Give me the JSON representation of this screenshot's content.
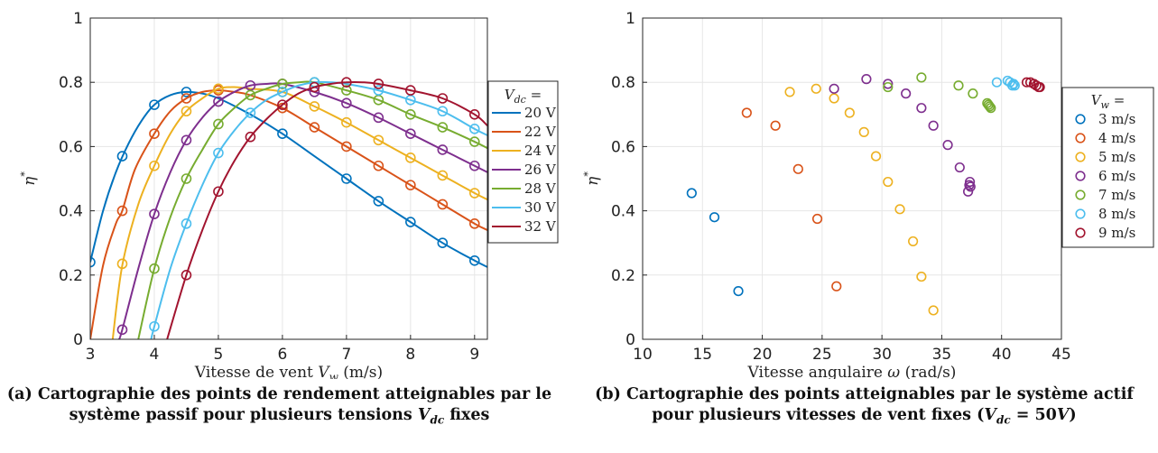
{
  "colors": {
    "palette": [
      "#0072BD",
      "#D95319",
      "#EDB120",
      "#7E2F8E",
      "#77AC30",
      "#4DBEEE",
      "#A2142F"
    ],
    "axes": "#262626",
    "grid": "#e6e6e6"
  },
  "captions": {
    "a": "(a) Cartographie des points de rendement atteignables par le système passif pour plusieurs tensions V_dc fixes",
    "b": "(b) Cartographie des points atteignables par le système actif pour plusieurs vitesses de vent fixes (V_dc = 50V)"
  },
  "chart_data": [
    {
      "type": "line",
      "xlabel": "Vitesse de vent V_w (m/s)",
      "ylabel": "η*",
      "xlim": [
        3,
        9.2
      ],
      "ylim": [
        0,
        1
      ],
      "xticks": [
        3,
        4,
        5,
        6,
        7,
        8,
        9
      ],
      "yticks": [
        0,
        0.2,
        0.4,
        0.6,
        0.8,
        1
      ],
      "ytick_labels": [
        "0",
        "0.2",
        "0.4",
        "0.6",
        "0.8",
        "1"
      ],
      "grid": true,
      "legend_title": "V_dc =",
      "legend_position": "outside-right",
      "series": [
        {
          "name": "20 V",
          "curve": {
            "x": [
              3.0,
              3.2,
              3.4,
              3.6,
              3.8,
              4.0,
              4.25,
              4.5,
              4.75,
              5.0,
              5.5,
              6.0,
              6.5,
              7.0,
              7.5,
              8.0,
              8.5,
              9.0,
              9.2
            ],
            "y": [
              0.24,
              0.4,
              0.52,
              0.61,
              0.68,
              0.73,
              0.76,
              0.77,
              0.765,
              0.75,
              0.7,
              0.64,
              0.57,
              0.5,
              0.43,
              0.365,
              0.3,
              0.245,
              0.225
            ]
          },
          "markers": {
            "x": [
              3.0,
              3.5,
              4.0,
              4.5,
              6.0,
              7.0,
              7.5,
              8.0,
              8.5,
              9.0
            ],
            "y": [
              0.24,
              0.57,
              0.73,
              0.77,
              0.64,
              0.5,
              0.43,
              0.365,
              0.3,
              0.245
            ]
          }
        },
        {
          "name": "22 V",
          "curve": {
            "x": [
              3.0,
              3.2,
              3.4,
              3.5,
              3.7,
              4.0,
              4.25,
              4.5,
              4.75,
              5.0,
              5.25,
              5.5,
              6.0,
              6.5,
              7.0,
              7.5,
              8.0,
              8.5,
              9.0,
              9.2
            ],
            "y": [
              0.0,
              0.23,
              0.36,
              0.4,
              0.53,
              0.64,
              0.71,
              0.75,
              0.77,
              0.775,
              0.77,
              0.76,
              0.72,
              0.66,
              0.6,
              0.54,
              0.48,
              0.42,
              0.36,
              0.34
            ]
          },
          "markers": {
            "x": [
              3.5,
              4.0,
              4.5,
              5.0,
              6.0,
              6.5,
              7.0,
              7.5,
              8.0,
              8.5,
              9.0
            ],
            "y": [
              0.4,
              0.64,
              0.75,
              0.775,
              0.72,
              0.66,
              0.6,
              0.54,
              0.48,
              0.42,
              0.36
            ]
          }
        },
        {
          "name": "24 V",
          "curve": {
            "x": [
              3.35,
              3.5,
              3.75,
              4.0,
              4.25,
              4.5,
              4.75,
              5.0,
              5.25,
              5.5,
              6.0,
              6.5,
              7.0,
              7.5,
              8.0,
              8.5,
              9.0,
              9.2
            ],
            "y": [
              0.0,
              0.23,
              0.42,
              0.54,
              0.64,
              0.71,
              0.75,
              0.78,
              0.785,
              0.78,
              0.77,
              0.725,
              0.675,
              0.62,
              0.565,
              0.51,
              0.455,
              0.435
            ]
          },
          "markers": {
            "x": [
              3.5,
              4.0,
              4.5,
              5.0,
              6.0,
              6.5,
              7.0,
              7.5,
              8.0,
              8.5,
              9.0
            ],
            "y": [
              0.235,
              0.54,
              0.71,
              0.78,
              0.77,
              0.725,
              0.675,
              0.62,
              0.565,
              0.51,
              0.455
            ]
          }
        },
        {
          "name": "26 V",
          "curve": {
            "x": [
              3.45,
              3.5,
              3.75,
              4.0,
              4.25,
              4.5,
              4.75,
              5.0,
              5.25,
              5.5,
              5.75,
              6.0,
              6.5,
              7.0,
              7.5,
              8.0,
              8.5,
              9.0,
              9.2
            ],
            "y": [
              0.0,
              0.03,
              0.22,
              0.39,
              0.52,
              0.62,
              0.69,
              0.74,
              0.77,
              0.79,
              0.795,
              0.795,
              0.77,
              0.735,
              0.69,
              0.64,
              0.59,
              0.54,
              0.52
            ]
          },
          "markers": {
            "x": [
              3.5,
              4.0,
              4.5,
              5.0,
              5.5,
              6.0,
              6.5,
              7.0,
              7.5,
              8.0,
              8.5,
              9.0
            ],
            "y": [
              0.03,
              0.39,
              0.62,
              0.74,
              0.79,
              0.795,
              0.77,
              0.735,
              0.69,
              0.64,
              0.59,
              0.54
            ]
          }
        },
        {
          "name": "28 V",
          "curve": {
            "x": [
              3.75,
              4.0,
              4.25,
              4.5,
              4.75,
              5.0,
              5.25,
              5.5,
              5.75,
              6.0,
              6.25,
              6.5,
              7.0,
              7.5,
              8.0,
              8.5,
              9.0,
              9.2
            ],
            "y": [
              0.0,
              0.22,
              0.38,
              0.5,
              0.59,
              0.67,
              0.72,
              0.76,
              0.78,
              0.795,
              0.8,
              0.8,
              0.775,
              0.745,
              0.7,
              0.66,
              0.615,
              0.595
            ]
          },
          "markers": {
            "x": [
              4.0,
              4.5,
              5.0,
              5.5,
              6.0,
              6.5,
              7.0,
              7.5,
              8.0,
              8.5,
              9.0
            ],
            "y": [
              0.22,
              0.5,
              0.67,
              0.76,
              0.795,
              0.8,
              0.775,
              0.745,
              0.7,
              0.66,
              0.615
            ]
          }
        },
        {
          "name": "30 V",
          "curve": {
            "x": [
              3.95,
              4.0,
              4.25,
              4.5,
              4.75,
              5.0,
              5.25,
              5.5,
              5.75,
              6.0,
              6.25,
              6.5,
              6.75,
              7.0,
              7.5,
              8.0,
              8.5,
              9.0,
              9.2
            ],
            "y": [
              0.0,
              0.04,
              0.22,
              0.36,
              0.48,
              0.58,
              0.65,
              0.705,
              0.745,
              0.77,
              0.79,
              0.8,
              0.8,
              0.795,
              0.775,
              0.745,
              0.71,
              0.655,
              0.635
            ]
          },
          "markers": {
            "x": [
              4.0,
              4.5,
              5.0,
              5.5,
              6.0,
              6.5,
              7.5,
              8.0,
              8.5,
              9.0
            ],
            "y": [
              0.04,
              0.36,
              0.58,
              0.705,
              0.77,
              0.8,
              0.775,
              0.745,
              0.71,
              0.655
            ]
          }
        },
        {
          "name": "32 V",
          "curve": {
            "x": [
              4.2,
              4.5,
              4.75,
              5.0,
              5.25,
              5.5,
              5.75,
              6.0,
              6.25,
              6.5,
              6.75,
              7.0,
              7.25,
              7.5,
              8.0,
              8.5,
              9.0,
              9.2
            ],
            "y": [
              0.0,
              0.2,
              0.34,
              0.46,
              0.555,
              0.63,
              0.685,
              0.73,
              0.765,
              0.785,
              0.795,
              0.8,
              0.8,
              0.795,
              0.775,
              0.75,
              0.7,
              0.665
            ]
          },
          "markers": {
            "x": [
              4.5,
              5.0,
              5.5,
              6.0,
              6.5,
              7.0,
              7.5,
              8.0,
              8.5,
              9.0
            ],
            "y": [
              0.2,
              0.46,
              0.63,
              0.73,
              0.785,
              0.8,
              0.795,
              0.775,
              0.75,
              0.7
            ]
          }
        }
      ]
    },
    {
      "type": "scatter",
      "xlabel": "Vitesse angulaire ω (rad/s)",
      "ylabel": "η*",
      "xlim": [
        10,
        45
      ],
      "ylim": [
        0,
        1
      ],
      "xticks": [
        10,
        15,
        20,
        25,
        30,
        35,
        40,
        45
      ],
      "yticks": [
        0,
        0.2,
        0.4,
        0.6,
        0.8,
        1
      ],
      "ytick_labels": [
        "0",
        "0.2",
        "0.4",
        "0.6",
        "0.8",
        "1"
      ],
      "grid": true,
      "legend_title": "V_w =",
      "legend_position": "outside-right",
      "series": [
        {
          "name": "3 m/s",
          "x": [
            14.1,
            16.0,
            18.0
          ],
          "y": [
            0.455,
            0.38,
            0.15
          ]
        },
        {
          "name": "4 m/s",
          "x": [
            18.7,
            21.1,
            23.0,
            24.6,
            26.2
          ],
          "y": [
            0.705,
            0.665,
            0.53,
            0.375,
            0.165
          ]
        },
        {
          "name": "5 m/s",
          "x": [
            22.3,
            24.5,
            26.0,
            27.3,
            28.5,
            29.5,
            30.5,
            31.5,
            32.6,
            33.3,
            34.3
          ],
          "y": [
            0.77,
            0.78,
            0.75,
            0.705,
            0.645,
            0.57,
            0.49,
            0.405,
            0.305,
            0.195,
            0.09
          ]
        },
        {
          "name": "6 m/s",
          "x": [
            26.0,
            28.7,
            30.5,
            32.0,
            33.3,
            34.3,
            35.5,
            36.5,
            37.2,
            37.3,
            37.35,
            37.4
          ],
          "y": [
            0.78,
            0.81,
            0.795,
            0.765,
            0.72,
            0.665,
            0.605,
            0.535,
            0.46,
            0.48,
            0.49,
            0.475
          ]
        },
        {
          "name": "7 m/s",
          "x": [
            30.5,
            33.3,
            36.4,
            37.6,
            38.8,
            38.9,
            39.0,
            39.1
          ],
          "y": [
            0.785,
            0.815,
            0.79,
            0.765,
            0.735,
            0.73,
            0.725,
            0.72
          ]
        },
        {
          "name": "8 m/s",
          "x": [
            39.6,
            40.5,
            40.7,
            40.9,
            41.0,
            41.1
          ],
          "y": [
            0.8,
            0.805,
            0.8,
            0.79,
            0.795,
            0.79
          ]
        },
        {
          "name": "9 m/s",
          "x": [
            42.1,
            42.4,
            42.7,
            42.9,
            43.1,
            43.2
          ],
          "y": [
            0.8,
            0.8,
            0.795,
            0.79,
            0.785,
            0.785
          ]
        }
      ]
    }
  ]
}
